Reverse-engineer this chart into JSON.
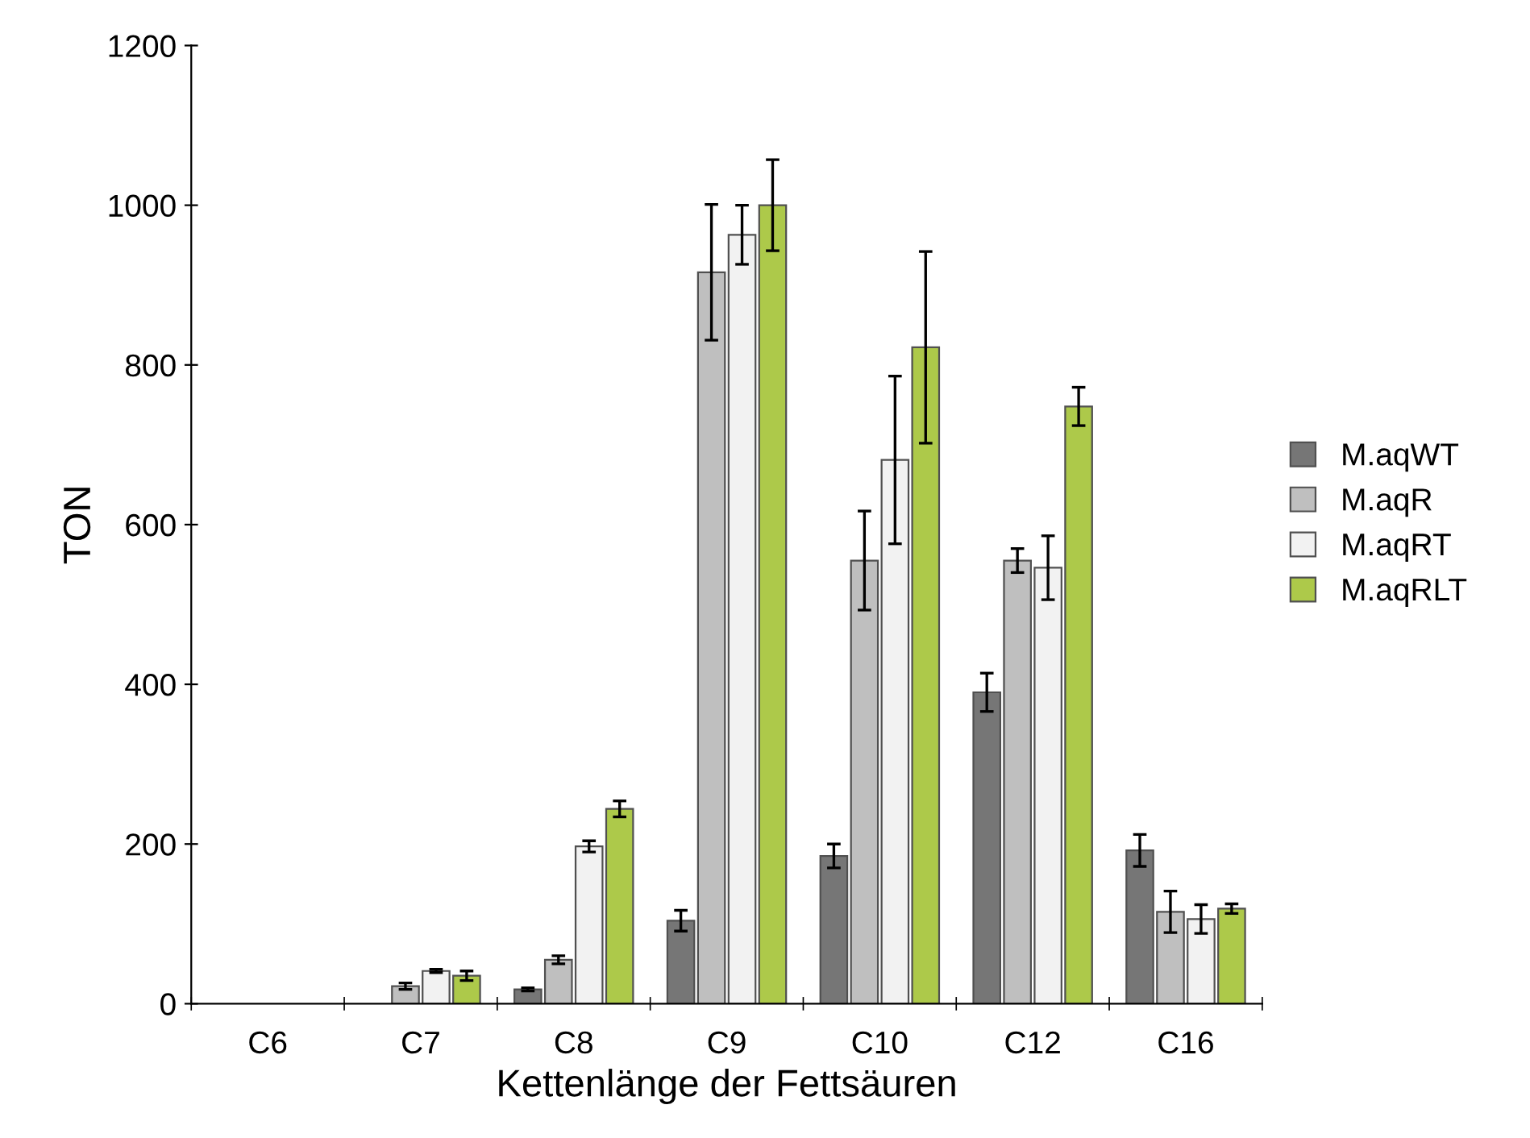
{
  "chart_data": {
    "type": "bar",
    "xlabel": "Kettenlänge der Fettsäuren",
    "ylabel": "TON",
    "categories": [
      "C6",
      "C7",
      "C8",
      "C9",
      "C10",
      "C12",
      "C16"
    ],
    "series": [
      {
        "name": "M.aqWT",
        "color": "#767676",
        "values": [
          null,
          null,
          18,
          104,
          185,
          390,
          192
        ],
        "errors": [
          null,
          null,
          2,
          13,
          15,
          24,
          20
        ]
      },
      {
        "name": "M.aqR",
        "color": "#bfbfbf",
        "values": [
          null,
          22,
          55,
          916,
          555,
          555,
          115
        ],
        "errors": [
          null,
          4,
          5,
          85,
          62,
          15,
          26
        ]
      },
      {
        "name": "M.aqRT",
        "color": "#f2f2f2",
        "values": [
          null,
          41,
          197,
          963,
          681,
          546,
          106
        ],
        "errors": [
          null,
          2,
          7,
          37,
          105,
          40,
          18
        ]
      },
      {
        "name": "M.aqRLT",
        "color": "#adc94a",
        "values": [
          null,
          35,
          244,
          1000,
          822,
          748,
          119
        ],
        "errors": [
          null,
          6,
          10,
          57,
          120,
          24,
          6
        ]
      }
    ],
    "ylim": [
      0,
      1200
    ],
    "yticks": [
      0,
      200,
      400,
      600,
      800,
      1000,
      1200
    ],
    "grid": false,
    "legend": "right"
  }
}
